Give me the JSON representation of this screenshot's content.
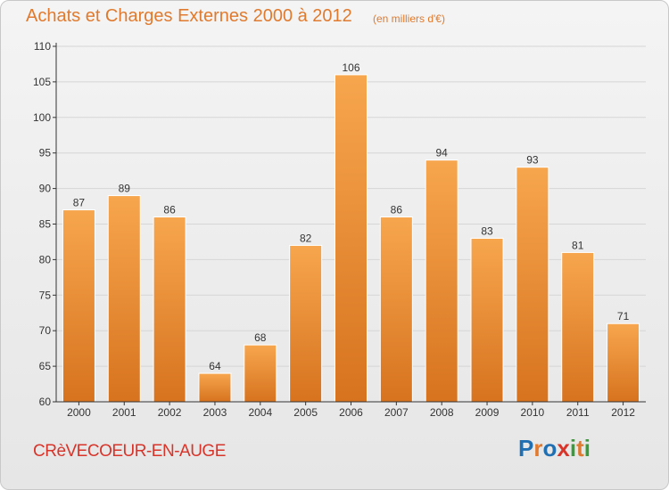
{
  "title": "Achats et Charges Externes 2000 à 2012",
  "subtitle": "(en milliers d'€)",
  "commune": "CRèVECOEUR-EN-AUGE",
  "logo": {
    "letters": [
      "P",
      "r",
      "o",
      "x",
      "i",
      "t",
      "i"
    ],
    "colors": [
      "#1f6fb2",
      "#e07a2e",
      "#1f6fb2",
      "#d8342a",
      "#3a9b3a",
      "#e07a2e",
      "#3a9b3a"
    ]
  },
  "colors": {
    "bar_top": "#f7a64e",
    "bar_bottom": "#d7731f",
    "bar_stroke": "#ffffff",
    "grid": "#d6d6d6",
    "axis": "#333333",
    "title": "#e07a2e",
    "commune": "#d8342a"
  },
  "chart_data": {
    "type": "bar",
    "categories": [
      "2000",
      "2001",
      "2002",
      "2003",
      "2004",
      "2005",
      "2006",
      "2007",
      "2008",
      "2009",
      "2010",
      "2011",
      "2012"
    ],
    "values": [
      87,
      89,
      86,
      64,
      68,
      82,
      106,
      86,
      94,
      83,
      93,
      81,
      71
    ],
    "title": "Achats et Charges Externes 2000 à 2012",
    "subtitle": "(en milliers d'€)",
    "xlabel": "",
    "ylabel": "",
    "ylim": [
      60,
      110
    ],
    "yticks": [
      60,
      65,
      70,
      75,
      80,
      85,
      90,
      95,
      100,
      105,
      110
    ],
    "grid": true,
    "data_labels": true
  }
}
